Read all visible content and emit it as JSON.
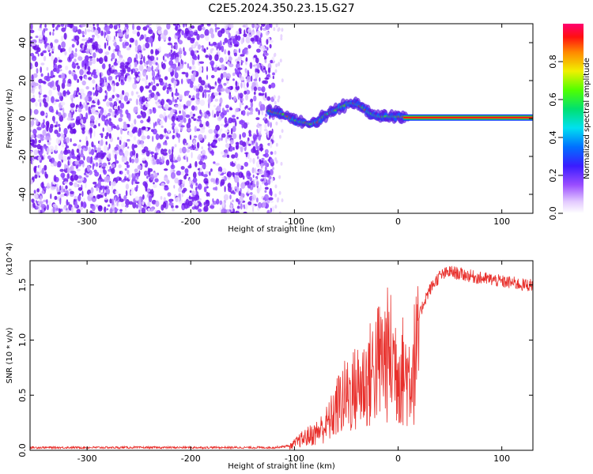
{
  "title": "C2E5.2024.350.23.15.G27",
  "chart_data": [
    {
      "type": "heatmap",
      "xlabel": "Height of straight line (km)",
      "ylabel": "Frequency (Hz)",
      "xlim": [
        -355,
        130
      ],
      "ylim": [
        -50,
        50
      ],
      "xticks": [
        "-300",
        "-200",
        "-100",
        "0",
        "100"
      ],
      "xtick_values": [
        -300,
        -200,
        -100,
        0,
        100
      ],
      "yticks": [
        "-40",
        "-20",
        "0",
        "20",
        "40"
      ],
      "ytick_values": [
        -40,
        -20,
        0,
        20,
        40
      ],
      "colorbar": {
        "label": "Normalized spectral amplitude",
        "range": [
          0,
          1
        ],
        "ticks": [
          "0.0",
          "0.2",
          "0.4",
          "0.6",
          "0.8"
        ],
        "tick_values": [
          0.0,
          0.2,
          0.4,
          0.6,
          0.8
        ],
        "colormap": "rainbow-white-to-magenta-red"
      },
      "noise_region_km": [
        -355,
        -120
      ],
      "signal_track": {
        "x_km": [
          -125,
          -118,
          -110,
          -100,
          -92,
          -85,
          -78,
          -70,
          -62,
          -55,
          -48,
          -42,
          -35,
          -28,
          -20,
          -12,
          -5,
          0,
          10,
          30,
          60,
          90,
          130
        ],
        "freq_hz": [
          4,
          3,
          2,
          -1,
          -2,
          -3,
          -2,
          2,
          4,
          6,
          8,
          8,
          6,
          3,
          1,
          1,
          1,
          1,
          0.5,
          0.5,
          0.5,
          0.5,
          0.5
        ]
      },
      "grid": false
    },
    {
      "type": "line",
      "xlabel": "Height of straight line (km)",
      "ylabel": "SNR (10 * v/v)",
      "y_multiplier": "(x10^4)",
      "xlim": [
        -355,
        130
      ],
      "ylim": [
        0,
        1.72
      ],
      "xticks": [
        "-300",
        "-200",
        "-100",
        "0",
        "100"
      ],
      "xtick_values": [
        -300,
        -200,
        -100,
        0,
        100
      ],
      "yticks": [
        "0.0",
        "0.5",
        "1.0",
        "1.5"
      ],
      "ytick_values": [
        0.0,
        0.5,
        1.0,
        1.5
      ],
      "color": "#e8302c",
      "series": [
        {
          "x": [
            -355,
            -300,
            -200,
            -120,
            -105,
            -100,
            -95,
            -90,
            -85,
            -80,
            -75,
            -70,
            -65,
            -60,
            -55,
            -50,
            -45,
            -40,
            -35,
            -30,
            -25,
            -20,
            -15,
            -10,
            -5,
            0,
            5,
            10,
            15,
            20,
            25,
            30,
            35,
            40,
            45,
            50,
            60,
            70,
            80,
            90,
            100,
            110,
            120,
            130
          ],
          "values": [
            0.025,
            0.025,
            0.025,
            0.025,
            0.04,
            0.08,
            0.12,
            0.15,
            0.18,
            0.2,
            0.25,
            0.3,
            0.38,
            0.5,
            0.6,
            0.65,
            0.7,
            0.75,
            0.8,
            0.85,
            0.95,
            1.05,
            1.1,
            1.15,
            1.1,
            1.0,
            0.95,
            0.9,
            1.05,
            1.2,
            1.35,
            1.45,
            1.52,
            1.58,
            1.6,
            1.62,
            1.6,
            1.58,
            1.56,
            1.55,
            1.53,
            1.52,
            1.5,
            1.5
          ]
        }
      ],
      "grid": false
    }
  ]
}
